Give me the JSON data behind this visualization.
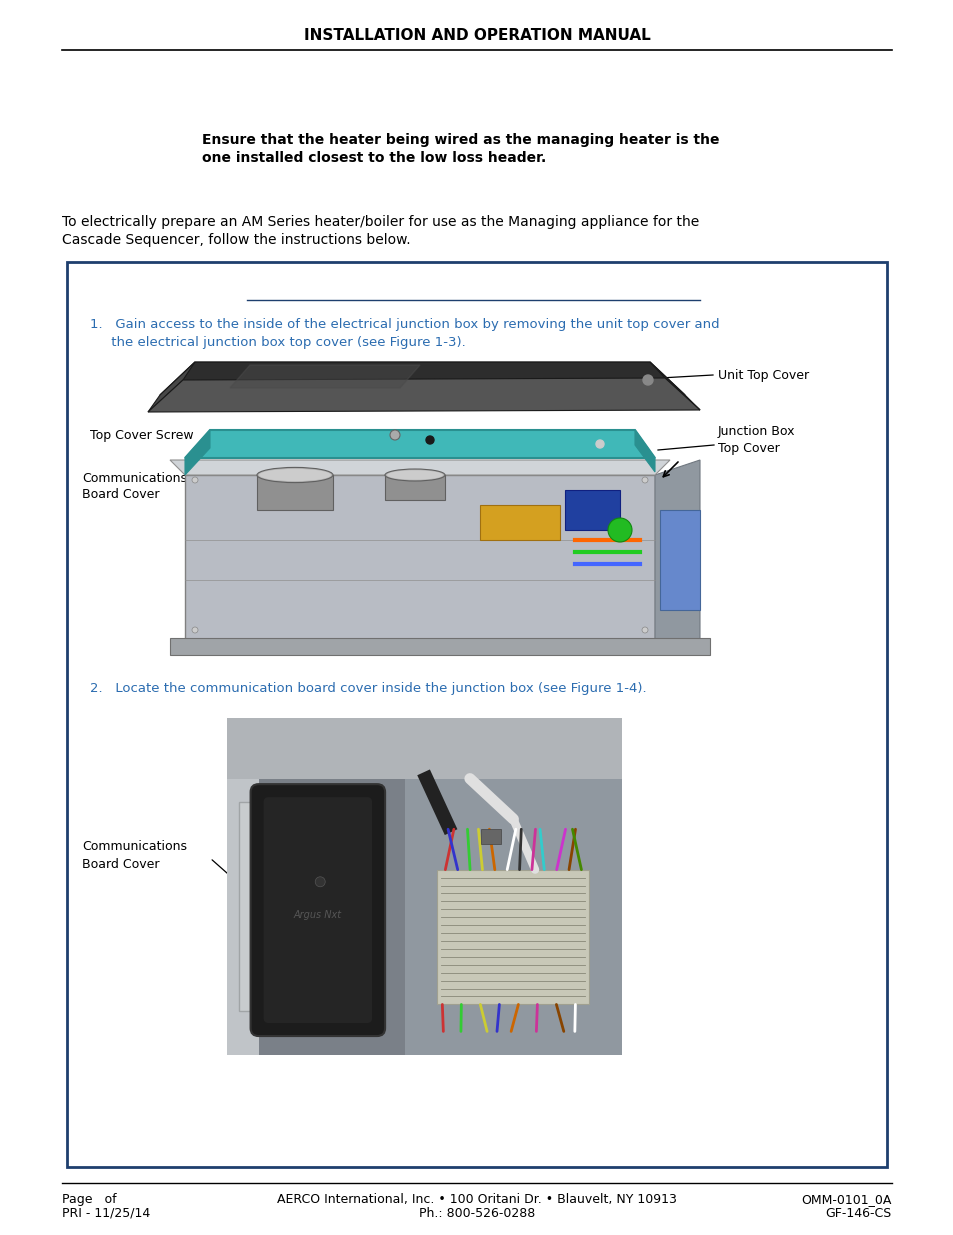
{
  "title": "INSTALLATION AND OPERATION MANUAL",
  "header_line_color": "#000000",
  "note_text_line1": "Ensure that the heater being wired as the managing heater is the",
  "note_text_line2": "one installed closest to the low loss header.",
  "intro_line1": "To electrically prepare an AM Series heater/boiler for use as the Managing appliance for the",
  "intro_line2": "Cascade Sequencer, follow the instructions below.",
  "box_border_color": "#1e3f6e",
  "box_inner_line_color": "#1e3f6e",
  "step1_line1": "1.   Gain access to the inside of the electrical junction box by removing the unit top cover and",
  "step1_line2": "     the electrical junction box top cover (see Figure 1-3).",
  "step1_color": "#2b6cb0",
  "step2_text": "2.   Locate the communication board cover inside the junction box (see Figure 1-4).",
  "step2_color": "#2b6cb0",
  "footer_line_color": "#000000",
  "footer_left1": "Page   of",
  "footer_left2": "PRI - 11/25/14",
  "footer_center1": "AERCO International, Inc. • 100 Oritani Dr. • Blauvelt, NY 10913",
  "footer_center2": "Ph.: 800-526-0288",
  "footer_right1": "OMM-0101_0A",
  "footer_right2": "GF-146-CS",
  "label_unit_top_cover": "Unit Top Cover",
  "label_junction_box_top_line1": "Junction Box",
  "label_junction_box_top_line2": "Top Cover",
  "label_top_cover_screw": "Top Cover Screw",
  "label_comm_board_cover_line1": "Communications",
  "label_comm_board_cover_line2": "Board Cover"
}
